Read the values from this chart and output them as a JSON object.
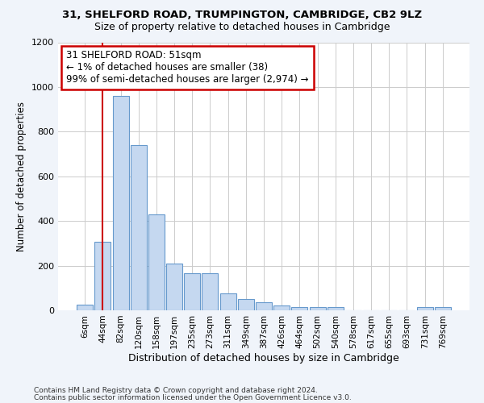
{
  "title1": "31, SHELFORD ROAD, TRUMPINGTON, CAMBRIDGE, CB2 9LZ",
  "title2": "Size of property relative to detached houses in Cambridge",
  "xlabel": "Distribution of detached houses by size in Cambridge",
  "ylabel": "Number of detached properties",
  "bar_labels": [
    "6sqm",
    "44sqm",
    "82sqm",
    "120sqm",
    "158sqm",
    "197sqm",
    "235sqm",
    "273sqm",
    "311sqm",
    "349sqm",
    "387sqm",
    "426sqm",
    "464sqm",
    "502sqm",
    "540sqm",
    "578sqm",
    "617sqm",
    "655sqm",
    "693sqm",
    "731sqm",
    "769sqm"
  ],
  "bar_values": [
    25,
    305,
    960,
    740,
    430,
    210,
    165,
    165,
    75,
    50,
    35,
    20,
    15,
    15,
    15,
    0,
    0,
    0,
    0,
    15,
    15
  ],
  "bar_color": "#c5d8f0",
  "bar_edgecolor": "#6699cc",
  "annotation_text": "31 SHELFORD ROAD: 51sqm\n← 1% of detached houses are smaller (38)\n99% of semi-detached houses are larger (2,974) →",
  "annotation_box_edgecolor": "#cc0000",
  "vline_color": "#cc0000",
  "vline_pos": 1.0,
  "ylim": [
    0,
    1200
  ],
  "yticks": [
    0,
    200,
    400,
    600,
    800,
    1000,
    1200
  ],
  "footnote1": "Contains HM Land Registry data © Crown copyright and database right 2024.",
  "footnote2": "Contains public sector information licensed under the Open Government Licence v3.0.",
  "bg_color": "#f0f4fa",
  "plot_bg_color": "#ffffff"
}
